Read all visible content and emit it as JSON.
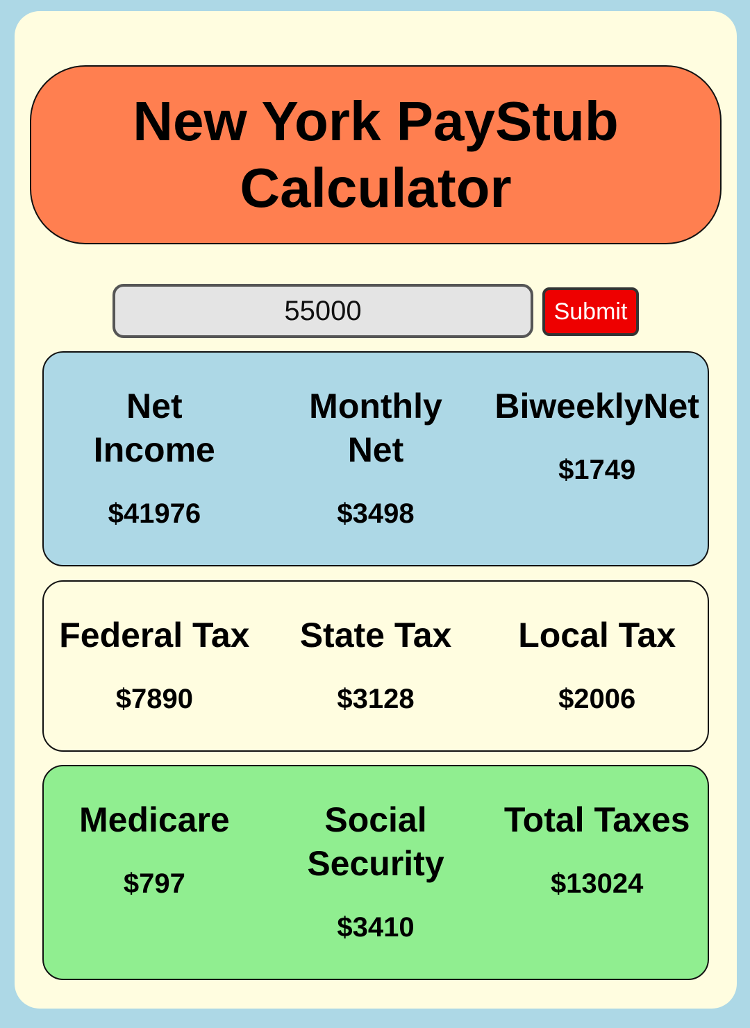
{
  "header": {
    "title": "New York PayStub Calculator"
  },
  "form": {
    "salary_value": "55000",
    "submit_label": "Submit"
  },
  "net_panel": [
    {
      "label": "Net Income",
      "value": "$41976"
    },
    {
      "label": "Monthly Net",
      "value": "$3498"
    },
    {
      "label": "BiweeklyNet",
      "value": "$1749"
    }
  ],
  "tax_panel": [
    {
      "label": "Federal Tax",
      "value": "$7890"
    },
    {
      "label": "State Tax",
      "value": "$3128"
    },
    {
      "label": "Local Tax",
      "value": "$2006"
    }
  ],
  "other_panel": [
    {
      "label": "Medicare",
      "value": "$797"
    },
    {
      "label": "Social Security",
      "value": "$3410"
    },
    {
      "label": "Total Taxes",
      "value": "$13024"
    }
  ],
  "colors": {
    "page_background": "#add8e6",
    "card_background": "#fffde0",
    "header_background": "#ff7f50",
    "submit_background": "#ee0000",
    "net_panel_background": "#add8e6",
    "tax_panel_background": "#fffde0",
    "other_panel_background": "#90ee90"
  }
}
